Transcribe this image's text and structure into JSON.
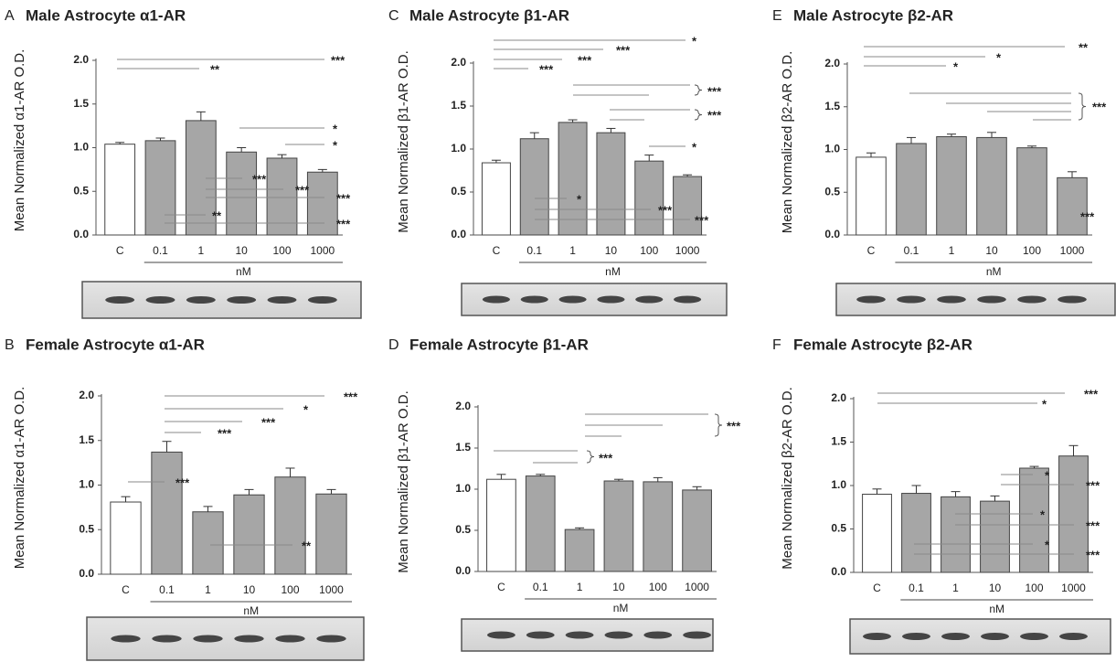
{
  "chart_data": [
    {
      "type": "bar",
      "panel_label": "A",
      "title": "Male Astrocyte α1-AR",
      "y_label": "Mean Normalized α1-AR O.D.",
      "x_label": "nM",
      "categories": [
        "C",
        "0.1",
        "1",
        "10",
        "100",
        "1000"
      ],
      "values": [
        1.04,
        1.08,
        1.31,
        0.95,
        0.88,
        0.72
      ],
      "errors": [
        0.02,
        0.03,
        0.1,
        0.05,
        0.04,
        0.03
      ],
      "colors": [
        "#ffffff",
        "#a6a6a6",
        "#a6a6a6",
        "#a6a6a6",
        "#a6a6a6",
        "#a6a6a6"
      ],
      "ylim": [
        0,
        2
      ],
      "yticks": [
        {
          "value": 0,
          "label": "0.0"
        },
        0.5,
        {
          "value": 1,
          "label": "1.0"
        },
        1.5,
        {
          "value": 2,
          "label": "2.0"
        }
      ],
      "annotations": [
        "***",
        "**",
        "*",
        "*",
        "***",
        "***",
        "***",
        "**",
        "***"
      ]
    },
    {
      "type": "bar",
      "panel_label": "B",
      "title": "Female Astrocyte α1-AR",
      "y_label": "Mean Normalized α1-AR O.D.",
      "x_label": "nM",
      "categories": [
        "C",
        "0.1",
        "1",
        "10",
        "100",
        "1000"
      ],
      "values": [
        0.81,
        1.37,
        0.7,
        0.89,
        1.09,
        0.9
      ],
      "errors": [
        0.06,
        0.12,
        0.06,
        0.06,
        0.1,
        0.05
      ],
      "colors": [
        "#ffffff",
        "#a6a6a6",
        "#a6a6a6",
        "#a6a6a6",
        "#a6a6a6",
        "#a6a6a6"
      ],
      "ylim": [
        0,
        2
      ],
      "yticks": [
        {
          "value": 0,
          "label": "0.0"
        },
        0.5,
        {
          "value": 1,
          "label": "1.0"
        },
        1.5,
        {
          "value": 2,
          "label": "2.0"
        }
      ],
      "annotations": [
        "***",
        "*",
        "***",
        "***",
        "***",
        "**"
      ]
    },
    {
      "type": "bar",
      "panel_label": "C",
      "title": "Male Astrocyte β1-AR",
      "y_label": "Mean Normalized β1-AR O.D.",
      "x_label": "nM",
      "categories": [
        "C",
        "0.1",
        "1",
        "10",
        "100",
        "1000"
      ],
      "values": [
        0.84,
        1.12,
        1.31,
        1.19,
        0.86,
        0.68
      ],
      "errors": [
        0.03,
        0.07,
        0.03,
        0.05,
        0.07,
        0.02
      ],
      "colors": [
        "#ffffff",
        "#a6a6a6",
        "#a6a6a6",
        "#a6a6a6",
        "#a6a6a6",
        "#a6a6a6"
      ],
      "ylim": [
        0,
        2
      ],
      "yticks": [
        {
          "value": 0,
          "label": "0.0"
        },
        0.5,
        {
          "value": 1,
          "label": "1.0"
        },
        1.5,
        {
          "value": 2,
          "label": "2.0"
        }
      ],
      "annotations": [
        "*",
        "***",
        "***",
        "***",
        "***",
        "***",
        "*",
        "*",
        "***",
        "***"
      ]
    },
    {
      "type": "bar",
      "panel_label": "D",
      "title": "Female Astrocyte β1-AR",
      "y_label": "Mean Normalized β1-AR O.D.",
      "x_label": "nM",
      "categories": [
        "C",
        "0.1",
        "1",
        "10",
        "100",
        "1000"
      ],
      "values": [
        1.12,
        1.16,
        0.51,
        1.1,
        1.09,
        0.99
      ],
      "errors": [
        0.06,
        0.02,
        0.02,
        0.02,
        0.05,
        0.04
      ],
      "colors": [
        "#ffffff",
        "#a6a6a6",
        "#a6a6a6",
        "#a6a6a6",
        "#a6a6a6",
        "#a6a6a6"
      ],
      "ylim": [
        0,
        2
      ],
      "yticks": [
        {
          "value": 0,
          "label": "0.0"
        },
        0.5,
        {
          "value": 1,
          "label": "1.0"
        },
        1.5,
        {
          "value": 2,
          "label": "2.0"
        }
      ],
      "annotations": [
        "***",
        "***"
      ]
    },
    {
      "type": "bar",
      "panel_label": "E",
      "title": "Male Astrocyte β2-AR",
      "y_label": "Mean Normalized β2-AR O.D.",
      "x_label": "nM",
      "categories": [
        "C",
        "0.1",
        "1",
        "10",
        "100",
        "1000"
      ],
      "values": [
        0.91,
        1.07,
        1.15,
        1.14,
        1.02,
        0.67
      ],
      "errors": [
        0.05,
        0.07,
        0.03,
        0.06,
        0.02,
        0.07
      ],
      "colors": [
        "#ffffff",
        "#a6a6a6",
        "#a6a6a6",
        "#a6a6a6",
        "#a6a6a6",
        "#a6a6a6"
      ],
      "ylim": [
        0,
        2
      ],
      "yticks": [
        {
          "value": 0,
          "label": "0.0"
        },
        0.5,
        {
          "value": 1,
          "label": "1.0"
        },
        1.5,
        {
          "value": 2,
          "label": "2.0"
        }
      ],
      "annotations": [
        "**",
        "*",
        "*",
        "***",
        "***"
      ]
    },
    {
      "type": "bar",
      "panel_label": "F",
      "title": "Female Astrocyte β2-AR",
      "y_label": "Mean Normalized β2-AR O.D.",
      "x_label": "nM",
      "categories": [
        "C",
        "0.1",
        "1",
        "10",
        "100",
        "1000"
      ],
      "values": [
        0.9,
        0.91,
        0.87,
        0.82,
        1.2,
        1.34
      ],
      "errors": [
        0.06,
        0.09,
        0.06,
        0.06,
        0.02,
        0.12
      ],
      "colors": [
        "#ffffff",
        "#a6a6a6",
        "#a6a6a6",
        "#a6a6a6",
        "#a6a6a6",
        "#a6a6a6"
      ],
      "ylim": [
        0,
        2
      ],
      "yticks": [
        {
          "value": 0,
          "label": "0.0"
        },
        0.5,
        {
          "value": 1,
          "label": "1.0"
        },
        1.5,
        {
          "value": 2,
          "label": "2.0"
        }
      ],
      "annotations": [
        "***",
        "*",
        "*",
        "***",
        "*",
        "***",
        "*",
        "***"
      ]
    }
  ]
}
